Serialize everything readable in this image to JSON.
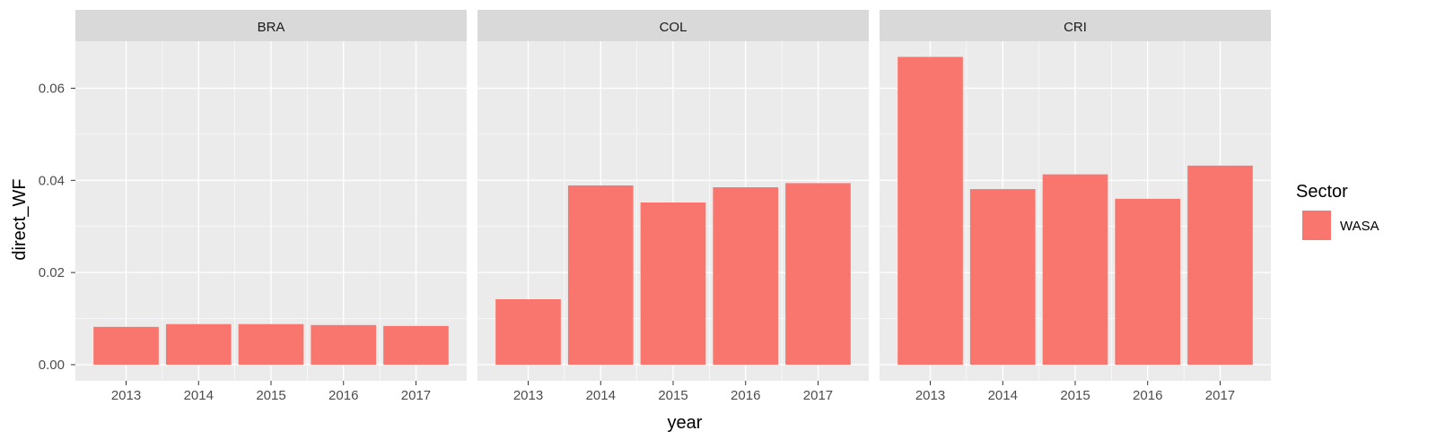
{
  "chart_data": {
    "type": "bar",
    "facet_by": "country",
    "facets": [
      {
        "label": "BRA",
        "categories": [
          "2013",
          "2014",
          "2015",
          "2016",
          "2017"
        ],
        "values": [
          0.0082,
          0.0088,
          0.0088,
          0.0086,
          0.0084
        ]
      },
      {
        "label": "COL",
        "categories": [
          "2013",
          "2014",
          "2015",
          "2016",
          "2017"
        ],
        "values": [
          0.0142,
          0.0389,
          0.0352,
          0.0385,
          0.0394
        ]
      },
      {
        "label": "CRI",
        "categories": [
          "2013",
          "2014",
          "2015",
          "2016",
          "2017"
        ],
        "values": [
          0.0668,
          0.0381,
          0.0413,
          0.036,
          0.0432
        ]
      }
    ],
    "xlabel": "year",
    "ylabel": "direct_WF",
    "ylim": [
      -0.0035,
      0.0702
    ],
    "yticks": [
      0.0,
      0.02,
      0.04,
      0.06
    ],
    "ytick_labels": [
      "0.00",
      "0.02",
      "0.04",
      "0.06"
    ],
    "grid": true,
    "legend": {
      "title": "Sector",
      "entries": [
        {
          "label": "WASA",
          "color": "#f8766d"
        }
      ],
      "position": "right"
    },
    "colors": {
      "bar": "#f8766d",
      "panel_bg": "#ebebeb",
      "strip_bg": "#d9d9d9",
      "grid": "#ffffff"
    }
  }
}
